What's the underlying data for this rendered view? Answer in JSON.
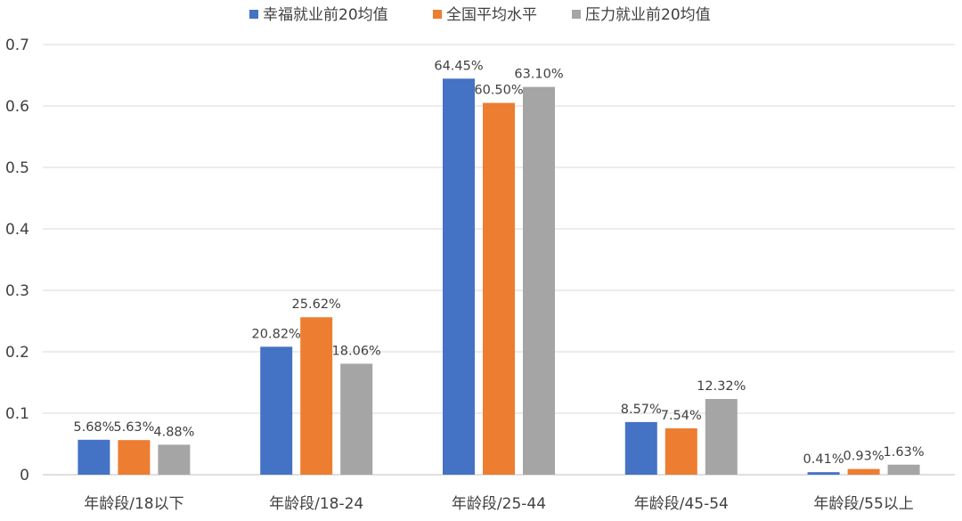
{
  "chart_data": {
    "type": "bar",
    "title": "",
    "xlabel": "",
    "ylabel": "",
    "categories": [
      "年龄段/18以下",
      "年龄段/18-24",
      "年龄段/25-44",
      "年龄段/45-54",
      "年龄段/55以上"
    ],
    "series": [
      {
        "name": "幸福就业前20均值",
        "color": "#4472c4",
        "values": [
          0.0568,
          0.2082,
          0.6445,
          0.0857,
          0.0041
        ],
        "labels": [
          "5.68%",
          "20.82%",
          "64.45%",
          "8.57%",
          "0.41%"
        ]
      },
      {
        "name": "全国平均水平",
        "color": "#ed7d31",
        "values": [
          0.0563,
          0.2562,
          0.605,
          0.0754,
          0.0093
        ],
        "labels": [
          "5.63%",
          "25.62%",
          "60.50%",
          "7.54%",
          "0.93%"
        ]
      },
      {
        "name": "压力就业前20均值",
        "color": "#a5a5a5",
        "values": [
          0.0488,
          0.1806,
          0.631,
          0.1232,
          0.0163
        ],
        "labels": [
          "4.88%",
          "18.06%",
          "63.10%",
          "12.32%",
          "1.63%"
        ]
      }
    ],
    "ylim": [
      0,
      0.7
    ],
    "yticks": [
      "0",
      "0.1",
      "0.2",
      "0.3",
      "0.4",
      "0.5",
      "0.6",
      "0.7"
    ],
    "grid": true,
    "legend_position": "top"
  }
}
